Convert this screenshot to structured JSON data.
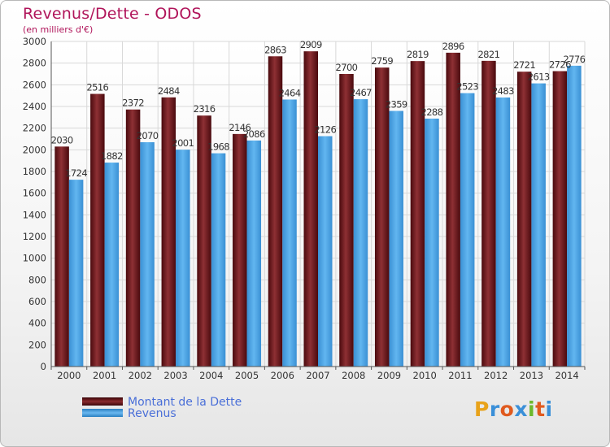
{
  "chart_data": {
    "type": "bar",
    "title": "Revenus/Dette - ODOS",
    "subtitle": "(en milliers d'€)",
    "categories": [
      "2000",
      "2001",
      "2002",
      "2003",
      "2004",
      "2005",
      "2006",
      "2007",
      "2008",
      "2009",
      "2010",
      "2011",
      "2012",
      "2013",
      "2014"
    ],
    "series": [
      {
        "name": "Montant de la Dette",
        "values": [
          2030,
          2516,
          2372,
          2484,
          2316,
          2146,
          2863,
          2909,
          2700,
          2759,
          2819,
          2896,
          2821,
          2721,
          2726
        ],
        "color": "#7a1e22"
      },
      {
        "name": "Revenus",
        "values": [
          1724,
          1882,
          2070,
          2001,
          1968,
          2086,
          2464,
          2126,
          2467,
          2359,
          2288,
          2523,
          2483,
          2613,
          2776
        ],
        "color": "#4aa3e4"
      }
    ],
    "ylim": [
      0,
      3000
    ],
    "yticks": [
      0,
      200,
      400,
      600,
      800,
      1000,
      1200,
      1400,
      1600,
      1800,
      2000,
      2200,
      2400,
      2600,
      2800,
      3000
    ],
    "grid": true,
    "legend": "bottom-left"
  },
  "logo": {
    "letters": [
      "P",
      "r",
      "o",
      "x",
      "i",
      "t",
      "i"
    ],
    "colors": [
      "#e8a21a",
      "#3a8fd8",
      "#e05a1e",
      "#3a8fd8",
      "#6cb82c",
      "#e05a1e",
      "#3a8fd8"
    ]
  }
}
